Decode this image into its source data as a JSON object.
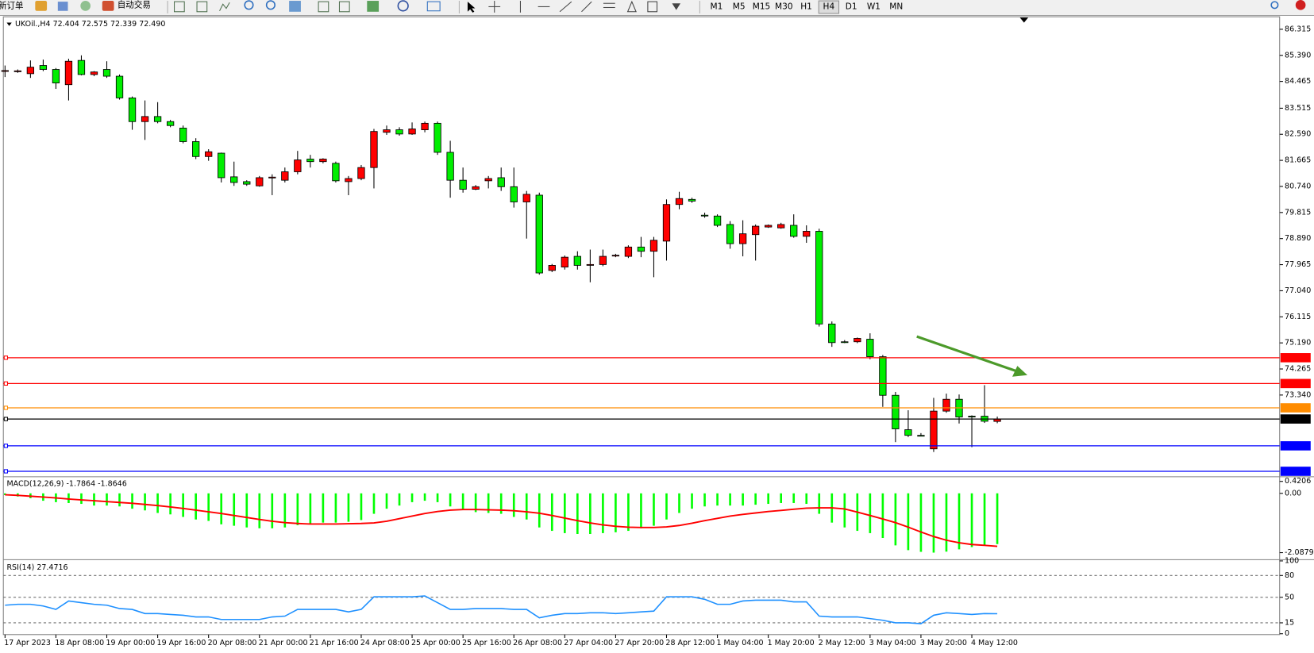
{
  "toolbar": {
    "new_order": "新订单",
    "auto_trading": "自动交易",
    "timeframes": [
      "M1",
      "M5",
      "M15",
      "M30",
      "H1",
      "H4",
      "D1",
      "W1",
      "MN"
    ],
    "active_timeframe": 5
  },
  "chart_data": [
    {
      "type": "candlestick",
      "title": "UKOil.,H4 72.404 72.575 72.339 72.490",
      "categories": [
        "17 Apr 2023",
        null,
        null,
        null,
        "18 Apr 08:00",
        null,
        null,
        null,
        "19 Apr 00:00",
        null,
        null,
        null,
        "19 Apr 16:00",
        null,
        null,
        null,
        "20 Apr 08:00",
        null,
        null,
        null,
        "21 Apr 00:00",
        null,
        null,
        null,
        "21 Apr 16:00",
        null,
        null,
        null,
        "24 Apr 08:00",
        null,
        null,
        null,
        "25 Apr 00:00",
        null,
        null,
        null,
        "25 Apr 16:00",
        null,
        null,
        null,
        "26 Apr 08:00",
        null,
        null,
        null,
        "27 Apr 04:00",
        null,
        null,
        null,
        "27 Apr 20:00",
        null,
        null,
        null,
        "28 Apr 12:00",
        null,
        null,
        null,
        "1 May 04:00",
        null,
        null,
        null,
        "1 May 20:00",
        null,
        null,
        null,
        "2 May 12:00",
        null,
        null,
        null,
        "3 May 04:00",
        null,
        null,
        null,
        "3 May 20:00",
        null,
        null,
        null,
        "4 May 12:00",
        null,
        null
      ],
      "open": [
        84.83,
        84.82,
        84.74,
        85.03,
        84.89,
        84.35,
        85.21,
        84.71,
        84.89,
        84.65,
        83.88,
        83.04,
        83.22,
        83.04,
        82.81,
        82.33,
        81.8,
        81.92,
        81.08,
        80.91,
        80.76,
        81.05,
        80.96,
        81.26,
        81.71,
        81.62,
        81.56,
        80.91,
        81.02,
        81.41,
        82.66,
        82.75,
        82.6,
        82.75,
        82.98,
        81.95,
        80.96,
        80.64,
        80.94,
        81.05,
        80.73,
        80.19,
        80.43,
        77.76,
        77.88,
        78.26,
        77.94,
        77.97,
        78.29,
        78.26,
        78.59,
        78.44,
        78.8,
        80.1,
        80.28,
        79.72,
        79.69,
        79.39,
        78.71,
        79.03,
        79.3,
        79.27,
        79.36,
        78.97,
        79.15,
        75.86,
        75.23,
        75.23,
        75.32,
        74.7,
        73.33,
        72.11,
        71.91,
        71.43,
        72.77,
        73.19,
        72.59,
        72.59,
        72.404
      ],
      "high": [
        85.03,
        84.89,
        85.21,
        85.24,
        84.94,
        85.27,
        85.39,
        84.83,
        85.18,
        84.71,
        83.93,
        83.79,
        83.73,
        83.1,
        82.9,
        82.45,
        82.06,
        81.94,
        81.62,
        80.96,
        81.11,
        81.17,
        81.41,
        82.0,
        81.86,
        81.74,
        81.62,
        81.11,
        81.5,
        82.78,
        82.9,
        82.84,
        83.01,
        83.04,
        83.04,
        82.36,
        81.41,
        80.79,
        81.11,
        81.41,
        81.41,
        80.58,
        80.52,
        77.99,
        78.29,
        78.44,
        78.5,
        78.5,
        78.35,
        78.65,
        78.95,
        78.95,
        80.28,
        80.55,
        80.34,
        79.81,
        79.75,
        79.51,
        79.54,
        79.39,
        79.39,
        79.45,
        79.75,
        79.36,
        79.24,
        75.95,
        75.29,
        75.38,
        75.53,
        74.76,
        73.45,
        72.8,
        71.99,
        73.24,
        73.39,
        73.36,
        72.62,
        73.69,
        72.575
      ],
      "low": [
        84.62,
        84.77,
        84.59,
        84.83,
        84.2,
        83.79,
        84.68,
        84.65,
        84.59,
        83.82,
        82.75,
        82.39,
        82.98,
        82.84,
        82.27,
        81.71,
        81.65,
        80.88,
        80.76,
        80.76,
        80.73,
        80.43,
        80.88,
        81.17,
        81.41,
        81.56,
        80.88,
        80.43,
        80.96,
        80.67,
        82.57,
        82.54,
        82.57,
        82.66,
        81.86,
        80.34,
        80.52,
        80.61,
        80.67,
        80.58,
        79.99,
        78.89,
        77.61,
        77.7,
        77.79,
        77.79,
        77.34,
        77.91,
        78.23,
        78.2,
        78.23,
        77.52,
        78.11,
        79.93,
        80.16,
        79.63,
        79.3,
        78.53,
        78.26,
        78.11,
        79.27,
        79.24,
        78.92,
        78.74,
        75.77,
        75.05,
        75.18,
        75.18,
        74.61,
        72.92,
        71.67,
        71.85,
        71.88,
        71.32,
        72.71,
        72.33,
        71.49,
        72.35,
        72.339
      ],
      "close": [
        84.85,
        84.84,
        84.97,
        84.89,
        84.41,
        85.18,
        84.71,
        84.8,
        84.65,
        83.88,
        83.04,
        83.22,
        83.04,
        82.9,
        82.33,
        81.8,
        81.97,
        81.05,
        80.88,
        80.82,
        81.05,
        81.07,
        81.26,
        81.68,
        81.62,
        81.71,
        80.94,
        81.02,
        81.41,
        82.69,
        82.75,
        82.6,
        82.78,
        82.98,
        81.95,
        80.96,
        80.64,
        80.73,
        81.02,
        80.73,
        80.19,
        80.46,
        77.67,
        77.94,
        78.23,
        77.94,
        77.97,
        78.26,
        78.3,
        78.59,
        78.44,
        78.83,
        80.1,
        80.31,
        80.22,
        79.71,
        79.36,
        78.71,
        79.06,
        79.33,
        79.36,
        79.39,
        78.97,
        79.15,
        75.86,
        75.2,
        75.22,
        75.35,
        74.7,
        73.33,
        72.14,
        71.91,
        71.9,
        72.77,
        73.19,
        72.56,
        72.58,
        72.41,
        72.49
      ],
      "up_color": "#ff0000",
      "down_color": "#00ee00",
      "ylim": [
        70.485,
        86.7
      ],
      "yticks": [
        86.315,
        {
          "value": 85.39,
          "label": "85.390"
        },
        84.465,
        83.515,
        {
          "value": 82.59,
          "label": "82.590"
        },
        81.665,
        {
          "value": 80.74,
          "label": "80.740"
        },
        79.815,
        {
          "value": 78.89,
          "label": "78.890"
        },
        77.965,
        {
          "value": 77.04,
          "label": "77.040"
        },
        76.115,
        {
          "value": 75.19,
          "label": "75.190"
        },
        74.265,
        {
          "value": 73.34,
          "label": "73.340"
        }
      ],
      "grid": false,
      "levels": [
        {
          "value": 74.664,
          "color": "#ff0000"
        },
        {
          "value": 73.749,
          "color": "#ff0000"
        },
        {
          "value": 72.886,
          "color": "#ff8c00"
        },
        {
          "value": 72.49,
          "label": "72.490",
          "color": "#000000"
        },
        {
          "value": 71.538,
          "color": "#0000ff"
        },
        {
          "value": 70.635,
          "color": "#0000ff"
        }
      ]
    },
    {
      "type": "histogram-line",
      "title": "MACD(12,26,9) -1.7864 -1.8646",
      "ylim": [
        -2.26,
        0.51
      ],
      "yticks": [
        0.4206,
        {
          "value": 0,
          "label": "0.00"
        },
        -2.0879
      ],
      "grid": false,
      "series": [
        {
          "kind": "bar",
          "color": "#00ff00",
          "values": [
            -0.06,
            -0.11,
            -0.17,
            -0.26,
            -0.31,
            -0.34,
            -0.37,
            -0.43,
            -0.43,
            -0.46,
            -0.54,
            -0.6,
            -0.69,
            -0.74,
            -0.83,
            -0.92,
            -0.97,
            -1.09,
            -1.14,
            -1.2,
            -1.23,
            -1.23,
            -1.2,
            -1.12,
            -1.06,
            -1.03,
            -1.03,
            -1.0,
            -0.94,
            -0.72,
            -0.54,
            -0.43,
            -0.31,
            -0.26,
            -0.31,
            -0.46,
            -0.57,
            -0.66,
            -0.69,
            -0.72,
            -0.83,
            -0.92,
            -1.2,
            -1.32,
            -1.4,
            -1.43,
            -1.43,
            -1.4,
            -1.37,
            -1.32,
            -1.23,
            -1.14,
            -0.92,
            -0.69,
            -0.54,
            -0.46,
            -0.43,
            -0.43,
            -0.43,
            -0.4,
            -0.37,
            -0.34,
            -0.34,
            -0.37,
            -0.72,
            -1.03,
            -1.2,
            -1.32,
            -1.4,
            -1.57,
            -1.83,
            -2.0,
            -2.06,
            -2.0879,
            -2.05,
            -1.97,
            -1.89,
            -1.83,
            -1.7864
          ]
        },
        {
          "kind": "line",
          "color": "#ff0000",
          "values": [
            -0.05,
            -0.07,
            -0.1,
            -0.13,
            -0.16,
            -0.2,
            -0.23,
            -0.26,
            -0.29,
            -0.32,
            -0.35,
            -0.39,
            -0.43,
            -0.48,
            -0.53,
            -0.59,
            -0.65,
            -0.71,
            -0.78,
            -0.85,
            -0.92,
            -0.98,
            -1.03,
            -1.06,
            -1.08,
            -1.08,
            -1.08,
            -1.07,
            -1.06,
            -1.04,
            -0.98,
            -0.89,
            -0.8,
            -0.71,
            -0.64,
            -0.59,
            -0.57,
            -0.57,
            -0.58,
            -0.59,
            -0.61,
            -0.65,
            -0.7,
            -0.78,
            -0.87,
            -0.96,
            -1.04,
            -1.11,
            -1.16,
            -1.19,
            -1.2,
            -1.2,
            -1.18,
            -1.13,
            -1.05,
            -0.96,
            -0.88,
            -0.8,
            -0.74,
            -0.69,
            -0.64,
            -0.6,
            -0.56,
            -0.52,
            -0.51,
            -0.51,
            -0.55,
            -0.66,
            -0.78,
            -0.9,
            -1.03,
            -1.19,
            -1.36,
            -1.52,
            -1.65,
            -1.74,
            -1.8,
            -1.83,
            -1.8646
          ]
        }
      ]
    },
    {
      "type": "line",
      "title": "RSI(14) 27.4716",
      "ylim": [
        0,
        100
      ],
      "yticks": [
        100,
        80,
        50,
        15,
        0
      ],
      "grid": true,
      "series": [
        {
          "color": "#1e90ff",
          "values": [
            39.2,
            40.4,
            40.4,
            38.1,
            33.4,
            45.0,
            42.7,
            40.4,
            39.2,
            34.6,
            33.4,
            27.7,
            27.7,
            26.5,
            25.4,
            23.1,
            23.1,
            19.6,
            19.6,
            19.6,
            19.6,
            23.1,
            24.2,
            33.4,
            33.4,
            33.4,
            33.4,
            30.0,
            33.4,
            50.7,
            50.7,
            50.7,
            50.7,
            51.9,
            42.7,
            33.4,
            33.4,
            34.6,
            34.6,
            34.6,
            33.4,
            33.4,
            21.9,
            25.4,
            27.7,
            27.7,
            28.8,
            28.8,
            27.7,
            28.8,
            30.0,
            31.1,
            50.7,
            50.7,
            50.7,
            47.3,
            40.4,
            40.4,
            45.0,
            46.1,
            46.1,
            46.1,
            43.8,
            43.8,
            24.2,
            23.1,
            23.1,
            23.1,
            20.8,
            18.5,
            15.0,
            15.0,
            13.8,
            25.4,
            28.8,
            27.7,
            26.5,
            27.7,
            27.4716
          ]
        }
      ]
    }
  ]
}
